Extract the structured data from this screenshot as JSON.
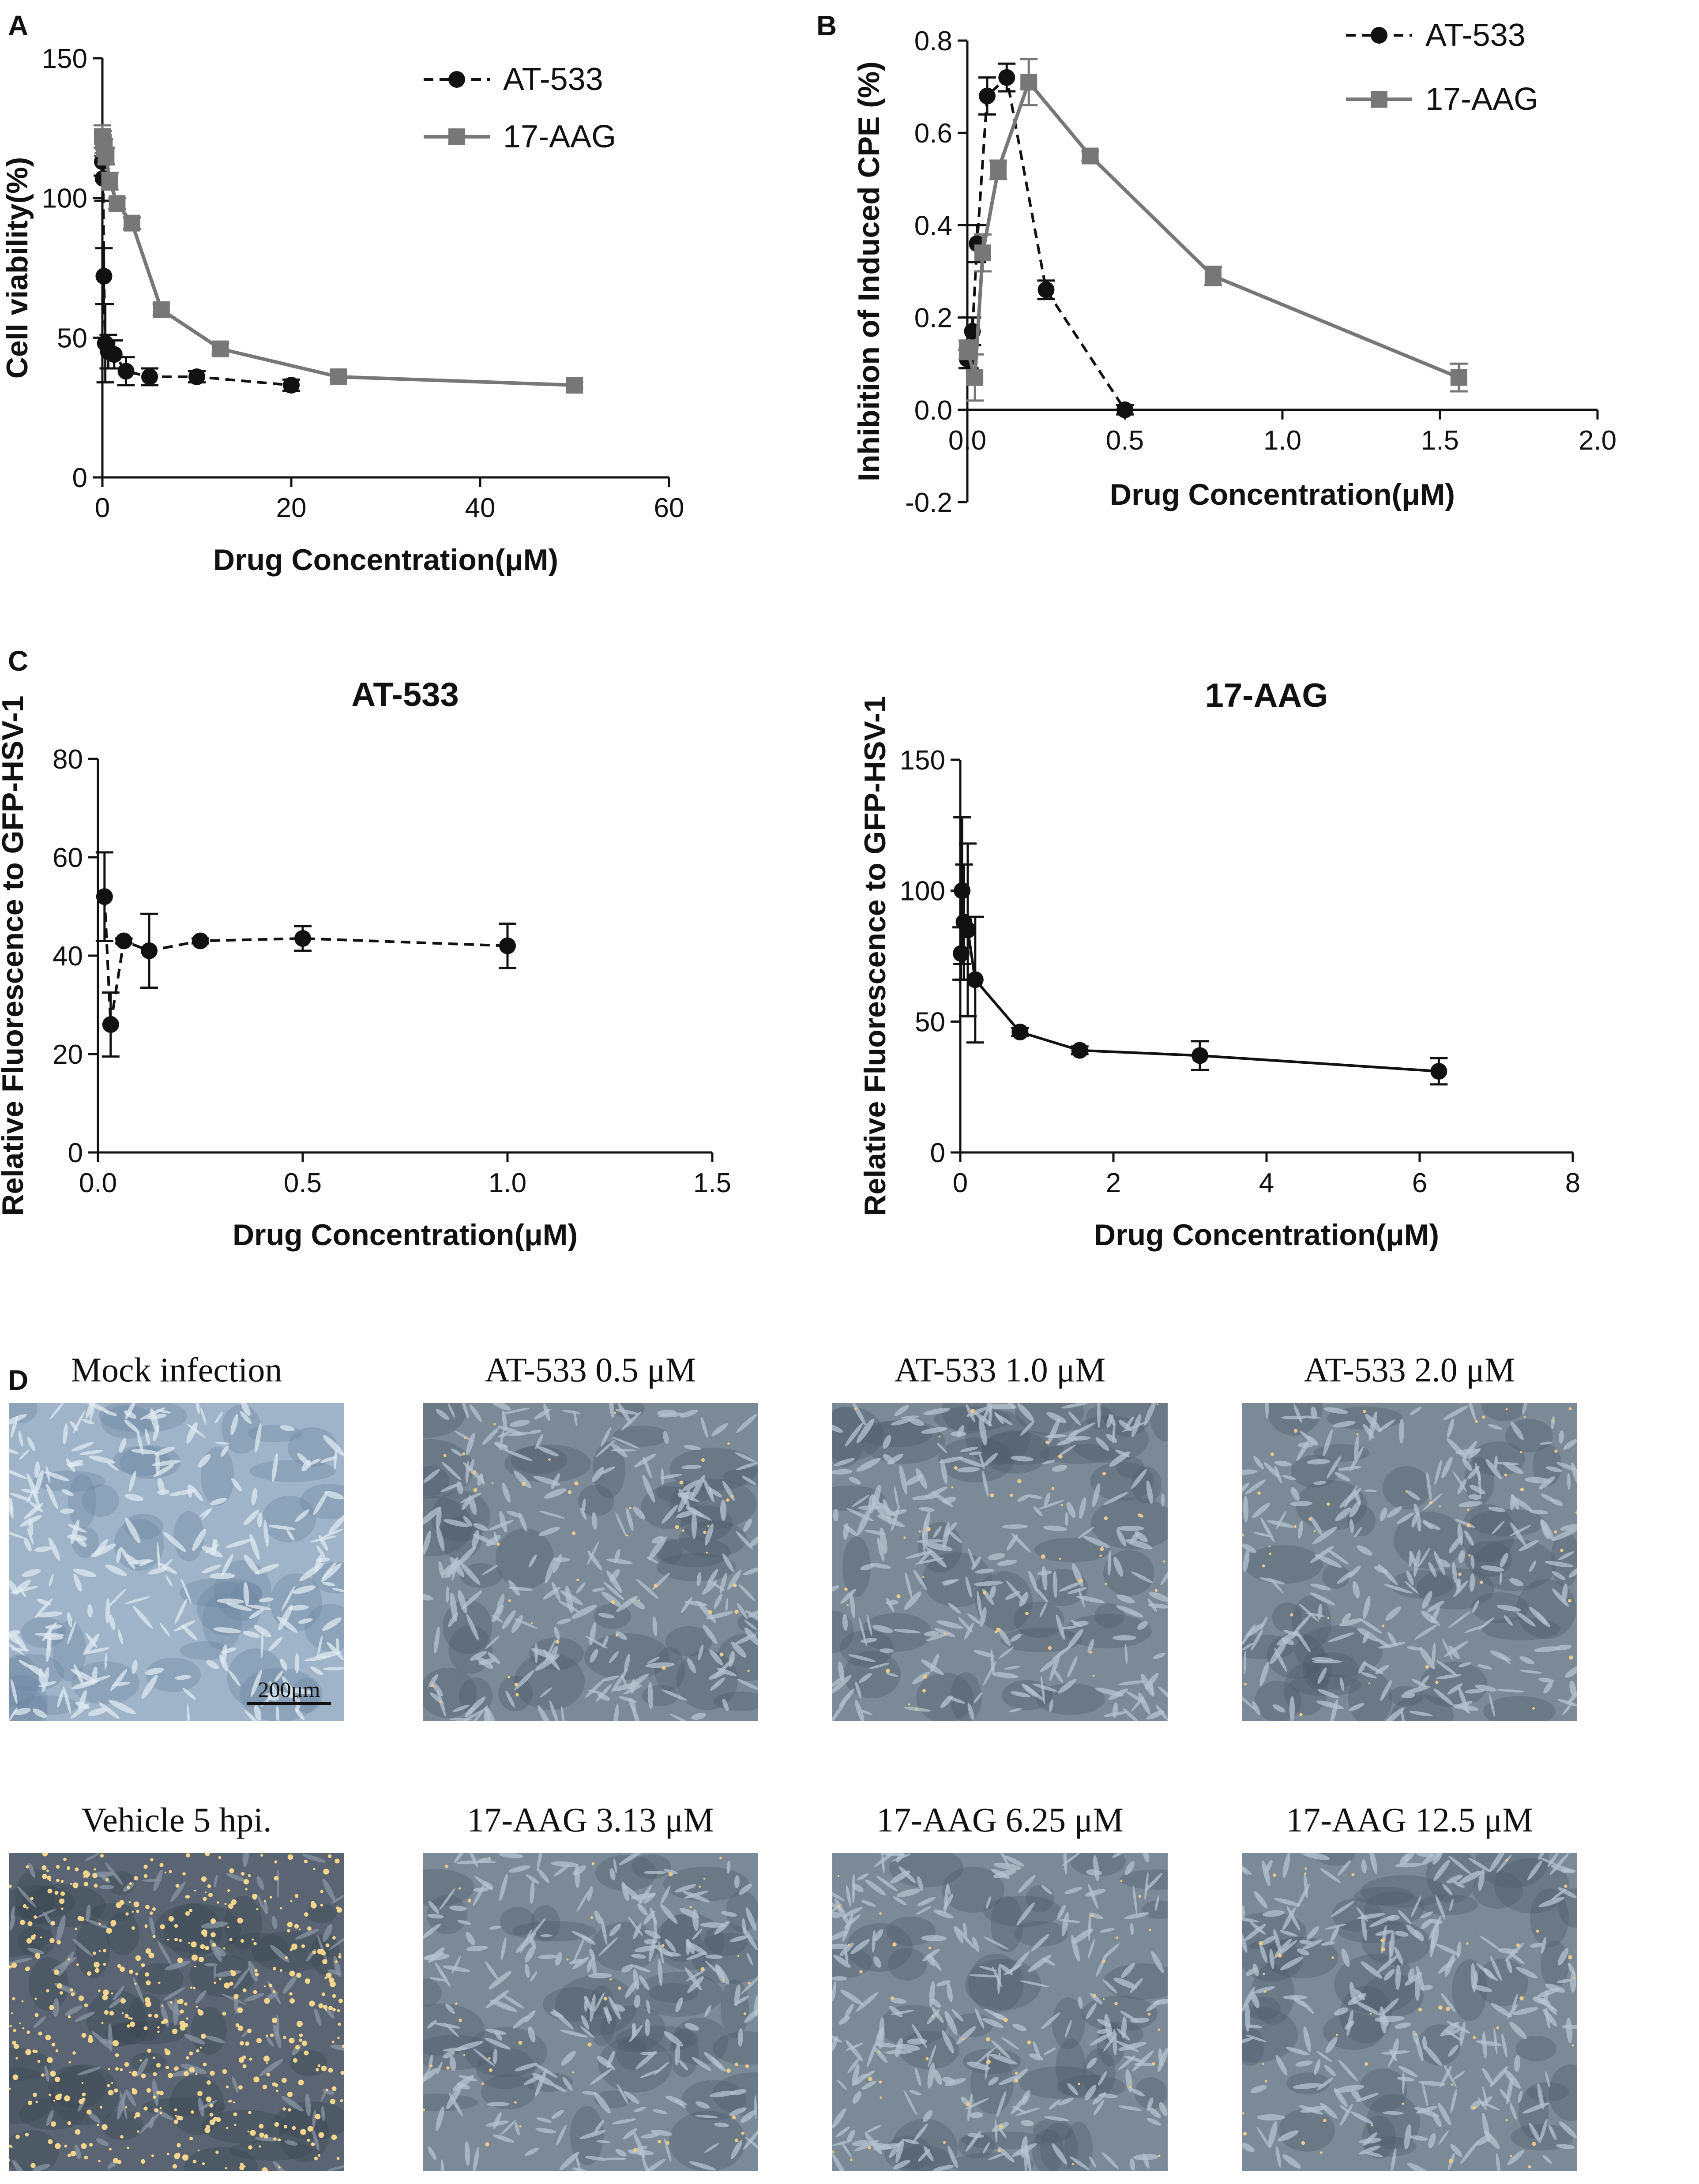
{
  "panels": [
    {
      "letter": "A"
    },
    {
      "letter": "B"
    },
    {
      "letter": "C"
    },
    {
      "letter": "D"
    }
  ],
  "chart_data": [
    {
      "panel": "A",
      "type": "scatter",
      "title": "",
      "xlabel": "Drug Concentration(μM)",
      "ylabel": "Cell viability(%)",
      "xlim": [
        0,
        60
      ],
      "ylim": [
        0,
        150
      ],
      "xticks": [
        0,
        20,
        40,
        60
      ],
      "yticks": [
        0,
        50,
        100,
        150
      ],
      "legend_position": "top-right",
      "series": [
        {
          "name": "AT-533",
          "marker": "circle",
          "color": "#111111",
          "line": "dashed",
          "x": [
            0.0,
            0.08,
            0.16,
            0.31,
            0.63,
            1.25,
            2.5,
            5,
            10,
            20
          ],
          "y": [
            113,
            107,
            72,
            48,
            45,
            44,
            38,
            36,
            36,
            33
          ],
          "err": [
            5,
            8,
            10,
            14,
            6,
            5,
            5,
            3,
            2,
            2
          ]
        },
        {
          "name": "17-AAG",
          "marker": "square",
          "color": "#777777",
          "line": "solid",
          "x": [
            0.0,
            0.1,
            0.2,
            0.39,
            0.78,
            1.56,
            3.13,
            6.25,
            12.5,
            25,
            50
          ],
          "y": [
            122,
            120,
            118,
            115,
            106,
            98,
            91,
            60,
            46,
            36,
            33
          ],
          "err": [
            4,
            4,
            3,
            3,
            3,
            2,
            2,
            2,
            2,
            1,
            1
          ]
        }
      ]
    },
    {
      "panel": "B",
      "type": "scatter",
      "title": "",
      "xlabel": "Drug Concentration(μM)",
      "ylabel": "Inhibition of Induced CPE (%)",
      "xlim": [
        0,
        2.0
      ],
      "ylim": [
        -0.2,
        0.8
      ],
      "xticks": [
        0.0,
        0.5,
        1.0,
        1.5,
        2.0
      ],
      "yticks": [
        -0.2,
        0.0,
        0.2,
        0.4,
        0.6,
        0.8
      ],
      "legend_position": "top-right",
      "series": [
        {
          "name": "AT-533",
          "marker": "circle",
          "color": "#111111",
          "line": "dashed",
          "x": [
            0.0,
            0.008,
            0.016,
            0.031,
            0.063,
            0.125,
            0.25,
            0.5
          ],
          "y": [
            0.11,
            0.12,
            0.17,
            0.36,
            0.68,
            0.72,
            0.26,
            0.0
          ],
          "err": [
            0.02,
            0.03,
            0.03,
            0.04,
            0.04,
            0.03,
            0.02,
            0.01
          ]
        },
        {
          "name": "17-AAG",
          "marker": "square",
          "color": "#777777",
          "line": "solid",
          "x": [
            0.0,
            0.024,
            0.049,
            0.098,
            0.195,
            0.39,
            0.78,
            1.56
          ],
          "y": [
            0.13,
            0.07,
            0.34,
            0.52,
            0.71,
            0.55,
            0.29,
            0.07
          ],
          "err": [
            0.02,
            0.05,
            0.04,
            0.02,
            0.05,
            0.01,
            0.02,
            0.03
          ]
        }
      ]
    },
    {
      "panel": "C",
      "type": "scatter",
      "title": "AT-533",
      "xlabel": "Drug Concentration(μM)",
      "ylabel": "Relative Fluorescence to GFP-HSV-1",
      "xlim": [
        0,
        1.5
      ],
      "ylim": [
        0,
        80
      ],
      "xticks": [
        0.0,
        0.5,
        1.0,
        1.5
      ],
      "yticks": [
        0,
        20,
        40,
        60,
        80
      ],
      "series": [
        {
          "marker": "circle",
          "color": "#111111",
          "line": "dashed",
          "x": [
            0.016,
            0.031,
            0.063,
            0.125,
            0.25,
            0.5,
            1.0
          ],
          "y": [
            52,
            26,
            43,
            41,
            43,
            43.5,
            42
          ],
          "err": [
            9,
            6.5,
            0.5,
            7.5,
            0.5,
            2.5,
            4.5
          ]
        }
      ]
    },
    {
      "panel": "C",
      "type": "scatter",
      "title": "17-AAG",
      "xlabel": "Drug Concentration(μM)",
      "ylabel": "Relative Fluorescence to GFP-HSV-1",
      "xlim": [
        0,
        8
      ],
      "ylim": [
        0,
        150
      ],
      "xticks": [
        0,
        2,
        4,
        6,
        8
      ],
      "yticks": [
        0,
        50,
        100,
        150
      ],
      "series": [
        {
          "marker": "circle",
          "color": "#111111",
          "line": "solid",
          "x": [
            0.012,
            0.024,
            0.049,
            0.098,
            0.195,
            0.78,
            1.56,
            3.13,
            6.25
          ],
          "y": [
            76,
            100,
            88,
            85,
            66,
            46,
            39,
            37,
            31
          ],
          "err": [
            10,
            28,
            22,
            33,
            24,
            1.5,
            1.5,
            5.5,
            5
          ]
        }
      ]
    }
  ],
  "micrographs": [
    {
      "caption": "Mock infection",
      "theme": "light",
      "scale_bar": "200μm"
    },
    {
      "caption": "AT-533  0.5 μM",
      "theme": "grey"
    },
    {
      "caption": "AT-533  1.0 μM",
      "theme": "grey"
    },
    {
      "caption": "AT-533  2.0 μM",
      "theme": "grey"
    },
    {
      "caption": "Vehicle  5 hpi.",
      "theme": "dark"
    },
    {
      "caption": "17-AAG  3.13 μM",
      "theme": "grey"
    },
    {
      "caption": "17-AAG  6.25 μM",
      "theme": "grey"
    },
    {
      "caption": "17-AAG  12.5 μM",
      "theme": "grey"
    }
  ]
}
